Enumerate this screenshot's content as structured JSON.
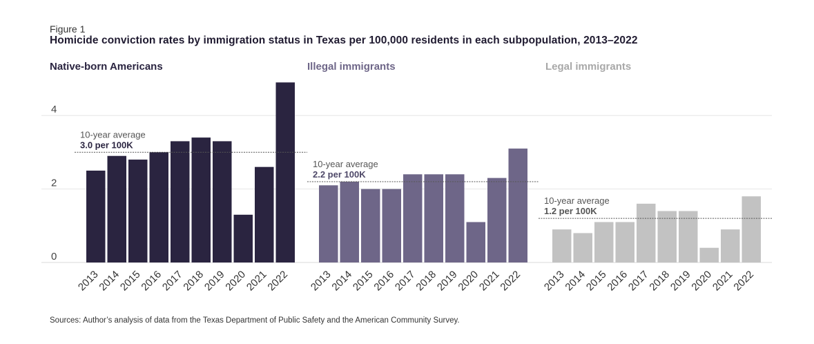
{
  "figure_label": "Figure 1",
  "source": "Sources: Author’s analysis of data from the Texas Department of Public Safety and the American Community Survey.",
  "chart_data": {
    "type": "bar",
    "title": "Homicide conviction rates by immigration status in Texas per 100,000 residents in each subpopulation, 2013–2022",
    "xlabel": "",
    "ylabel": "",
    "ylim": [
      0,
      5
    ],
    "yticks": [
      0,
      2,
      4
    ],
    "grid": true,
    "categories": [
      "2013",
      "2014",
      "2015",
      "2016",
      "2017",
      "2018",
      "2019",
      "2020",
      "2021",
      "2022"
    ],
    "series": [
      {
        "name": "Native-born Americans",
        "color": "#2a2440",
        "values": [
          2.5,
          2.9,
          2.8,
          3.0,
          3.3,
          3.4,
          3.3,
          1.3,
          2.6,
          4.9
        ],
        "average": 3.0,
        "avg_label": "10-year average",
        "avg_value_label": "3.0 per 100K"
      },
      {
        "name": "Illegal immigrants",
        "color": "#6e6688",
        "values": [
          2.1,
          2.2,
          2.0,
          2.0,
          2.4,
          2.4,
          2.4,
          1.1,
          2.3,
          3.1
        ],
        "average": 2.2,
        "avg_label": "10-year average",
        "avg_value_label": "2.2 per 100K"
      },
      {
        "name": "Legal immigrants",
        "color": "#c2c2c2",
        "values": [
          0.9,
          0.8,
          1.1,
          1.1,
          1.6,
          1.4,
          1.4,
          0.4,
          0.9,
          1.8
        ],
        "average": 1.2,
        "avg_label": "10-year average",
        "avg_value_label": "1.2 per 100K"
      }
    ]
  }
}
